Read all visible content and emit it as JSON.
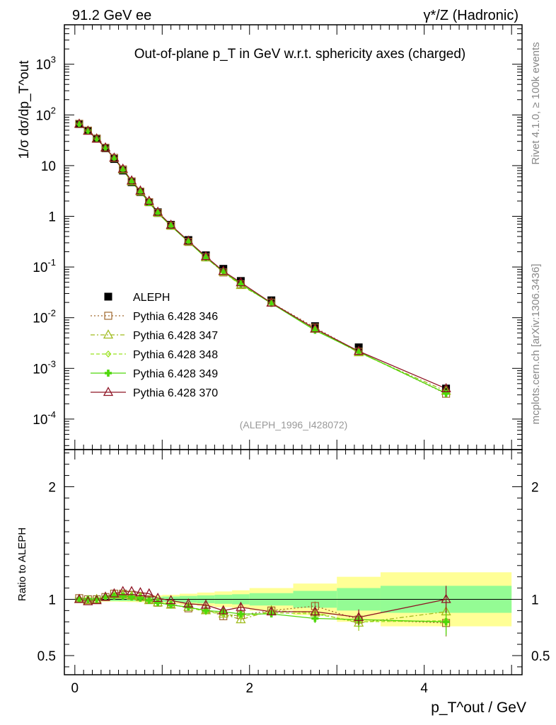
{
  "header": {
    "left": "91.2 GeV ee",
    "right": "γ*/Z (Hadronic)"
  },
  "side_labels": {
    "rivet": "Rivet 4.1.0, ≥ 100k events",
    "mcplots": "mcplots.cern.ch [arXiv:1306.3436]"
  },
  "chart_data": [
    {
      "type": "scatter",
      "panel": "main",
      "title": "Out-of-plane p_T in GeV w.r.t. sphericity axes (charged)",
      "ylabel": "1/σ dσ/dp_T^out",
      "yscale": "log",
      "ylim": [
        2.5e-05,
        6000
      ],
      "xlim": [
        -0.12,
        5.12
      ],
      "watermark": "(ALEPH_1996_I428072)",
      "y_tick_labels": [
        "10^3",
        "10^2",
        "10",
        "1",
        "10^-1",
        "10^-2",
        "10^-3",
        "10^-4"
      ],
      "legend": [
        "ALEPH",
        "Pythia 6.428 346",
        "Pythia 6.428 347",
        "Pythia 6.428 348",
        "Pythia 6.428 349",
        "Pythia 6.428 370"
      ],
      "x": [
        0.05,
        0.15,
        0.25,
        0.35,
        0.45,
        0.55,
        0.65,
        0.75,
        0.85,
        0.95,
        1.1,
        1.3,
        1.5,
        1.7,
        1.9,
        2.25,
        2.75,
        3.25,
        4.25
      ],
      "series": [
        {
          "name": "ALEPH",
          "color": "#000000",
          "marker": "square-filled",
          "values": [
            66,
            49,
            34,
            22,
            13.5,
            8.0,
            4.7,
            3.0,
            1.9,
            1.2,
            0.68,
            0.34,
            0.17,
            0.092,
            0.053,
            0.022,
            0.0068,
            0.0026,
            0.0004
          ]
        },
        {
          "name": "Pythia 6.428 346",
          "color": "#a0692e",
          "marker": "square-open",
          "dash": "2,3",
          "ratio": [
            1.01,
            1.0,
            1.0,
            1.02,
            1.05,
            1.05,
            1.04,
            1.02,
            1.0,
            0.97,
            0.96,
            0.92,
            0.91,
            0.85,
            0.86,
            0.9,
            0.94,
            0.82,
            0.79
          ]
        },
        {
          "name": "Pythia 6.428 347",
          "color": "#9fbb1c",
          "marker": "triangle-open",
          "dash": "6,3,2,3",
          "ratio": [
            1.0,
            0.99,
            1.0,
            1.02,
            1.04,
            1.04,
            1.03,
            1.02,
            0.99,
            0.97,
            0.95,
            0.93,
            0.9,
            0.87,
            0.82,
            0.9,
            0.88,
            0.79,
            0.89
          ]
        },
        {
          "name": "Pythia 6.428 348",
          "color": "#99e21e",
          "marker": "diamond-open",
          "dash": "5,3",
          "ratio": [
            1.0,
            1.0,
            1.0,
            1.02,
            1.03,
            1.03,
            1.03,
            1.02,
            0.99,
            0.97,
            0.95,
            0.93,
            0.89,
            0.87,
            0.85,
            0.88,
            0.87,
            0.8,
            0.81
          ]
        },
        {
          "name": "Pythia 6.428 349",
          "color": "#4fd70a",
          "marker": "cross-filled",
          "dash": "",
          "ratio": [
            1.0,
            1.0,
            1.0,
            1.02,
            1.03,
            1.03,
            1.02,
            1.01,
            0.99,
            0.97,
            0.95,
            0.93,
            0.9,
            0.89,
            0.87,
            0.87,
            0.83,
            0.82,
            0.8
          ]
        },
        {
          "name": "Pythia 6.428 370",
          "color": "#8e1424",
          "marker": "triangle-open",
          "dash": "",
          "ratio": [
            1.0,
            0.98,
            0.99,
            1.02,
            1.05,
            1.07,
            1.07,
            1.06,
            1.05,
            1.01,
            0.99,
            0.96,
            0.95,
            0.9,
            0.93,
            0.89,
            0.89,
            0.84,
            1.0
          ]
        }
      ]
    },
    {
      "type": "ratio",
      "panel": "ratio",
      "ylabel": "Ratio to ALEPH",
      "xlabel": "p_T^out / GeV",
      "ylim": [
        0.33,
        2.33
      ],
      "xlim": [
        -0.12,
        5.12
      ],
      "y_ticks": [
        0.5,
        1,
        2
      ],
      "x_ticks": [
        0,
        2,
        4
      ],
      "x_tick_labels": [
        "0",
        "2",
        "4"
      ],
      "y_tick_labels": [
        "0.5",
        "1",
        "2",
        "0.5",
        "1",
        "2"
      ],
      "bands": {
        "edges": [
          0.0,
          0.1,
          0.2,
          0.3,
          0.4,
          0.5,
          0.6,
          0.7,
          0.8,
          0.9,
          1.0,
          1.2,
          1.4,
          1.6,
          1.8,
          2.0,
          2.5,
          3.0,
          3.5,
          5.0
        ],
        "stat_unc": [
          0.015,
          0.015,
          0.015,
          0.015,
          0.015,
          0.015,
          0.015,
          0.016,
          0.018,
          0.02,
          0.025,
          0.03,
          0.035,
          0.04,
          0.045,
          0.055,
          0.075,
          0.1,
          0.12
        ],
        "total_unc": [
          0.02,
          0.02,
          0.02,
          0.02,
          0.02,
          0.022,
          0.024,
          0.026,
          0.03,
          0.035,
          0.04,
          0.05,
          0.06,
          0.07,
          0.08,
          0.1,
          0.14,
          0.2,
          0.24
        ],
        "inner_color": "#94fc94",
        "outer_color": "#ffff96"
      }
    }
  ]
}
